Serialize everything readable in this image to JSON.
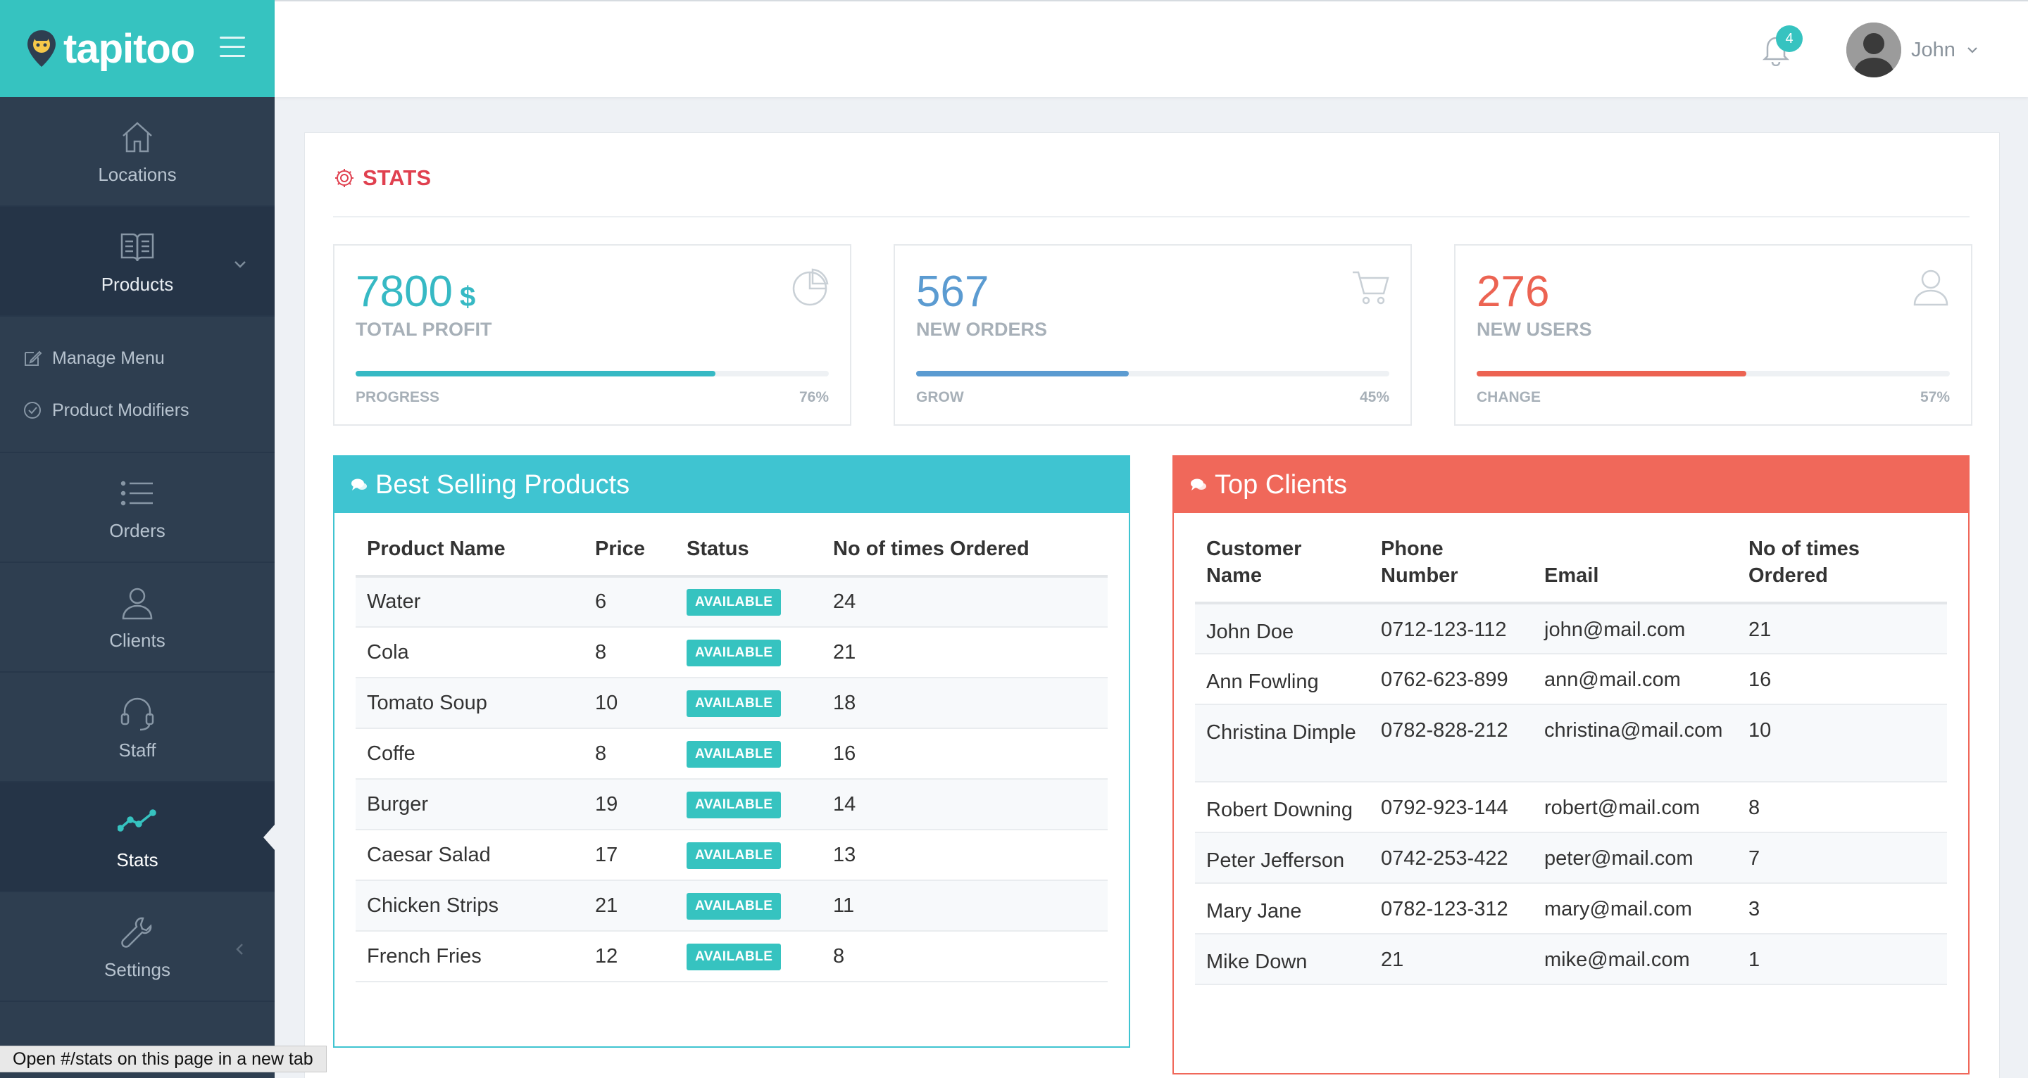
{
  "brand": {
    "name": "tapitoo"
  },
  "sidebar": {
    "items": [
      {
        "label": "Locations"
      },
      {
        "label": "Products"
      },
      {
        "label": "Orders"
      },
      {
        "label": "Clients"
      },
      {
        "label": "Staff"
      },
      {
        "label": "Stats"
      },
      {
        "label": "Settings"
      }
    ],
    "submenu": [
      {
        "label": "Manage Menu"
      },
      {
        "label": "Product Modifiers"
      }
    ]
  },
  "topbar": {
    "notifications": "4",
    "user_name": "John"
  },
  "stats": {
    "title": "STATS",
    "cards": [
      {
        "value": "7800",
        "unit": "$",
        "label": "TOTAL PROFIT",
        "bar_label": "PROGRESS",
        "pct_text": "76%",
        "pct": 0.76,
        "color": "#36b9c4",
        "icon": "pie-chart-icon"
      },
      {
        "value": "567",
        "unit": "",
        "label": "NEW ORDERS",
        "bar_label": "GROW",
        "pct_text": "45%",
        "pct": 0.45,
        "color": "#5b9bd1",
        "icon": "cart-icon"
      },
      {
        "value": "276",
        "unit": "",
        "label": "NEW USERS",
        "bar_label": "CHANGE",
        "pct_text": "57%",
        "pct": 0.57,
        "color": "#ec6352",
        "icon": "user-icon"
      }
    ]
  },
  "best_selling": {
    "title": "Best Selling Products",
    "headers": [
      "Product Name",
      "Price",
      "Status",
      "No of times Ordered"
    ],
    "rows": [
      {
        "name": "Water",
        "price": "6",
        "status": "AVAILABLE",
        "ordered": "24"
      },
      {
        "name": "Cola",
        "price": "8",
        "status": "AVAILABLE",
        "ordered": "21"
      },
      {
        "name": "Tomato Soup",
        "price": "10",
        "status": "AVAILABLE",
        "ordered": "18"
      },
      {
        "name": "Coffe",
        "price": "8",
        "status": "AVAILABLE",
        "ordered": "16"
      },
      {
        "name": "Burger",
        "price": "19",
        "status": "AVAILABLE",
        "ordered": "14"
      },
      {
        "name": "Caesar Salad",
        "price": "17",
        "status": "AVAILABLE",
        "ordered": "13"
      },
      {
        "name": "Chicken Strips",
        "price": "21",
        "status": "AVAILABLE",
        "ordered": "11"
      },
      {
        "name": "French Fries",
        "price": "12",
        "status": "AVAILABLE",
        "ordered": "8"
      }
    ]
  },
  "top_clients": {
    "title": "Top Clients",
    "headers": [
      "Customer Name",
      "Phone Number",
      "Email",
      "No of times Ordered"
    ],
    "rows": [
      {
        "name": "John Doe",
        "phone": "0712-123-112",
        "email": "john@mail.com",
        "ordered": "21"
      },
      {
        "name": "Ann Fowling",
        "phone": "0762-623-899",
        "email": "ann@mail.com",
        "ordered": "16"
      },
      {
        "name": "Christina Dimple",
        "phone": "0782-828-212",
        "email": "christina@mail.com",
        "ordered": "10"
      },
      {
        "name": "Robert Downing",
        "phone": "0792-923-144",
        "email": "robert@mail.com",
        "ordered": "8"
      },
      {
        "name": "Peter Jefferson",
        "phone": "0742-253-422",
        "email": "peter@mail.com",
        "ordered": "7"
      },
      {
        "name": "Mary Jane",
        "phone": "0782-123-312",
        "email": "mary@mail.com",
        "ordered": "3"
      },
      {
        "name": "Mike Down",
        "phone": "21",
        "email": "mike@mail.com",
        "ordered": "1"
      }
    ]
  },
  "browser_status": {
    "text": "Open #/stats on this page in a new tab"
  },
  "colors": {
    "accent": "#36c3c0",
    "sidebar": "#2e3e50",
    "danger": "#ec6352",
    "stats_title": "#e0404f"
  }
}
